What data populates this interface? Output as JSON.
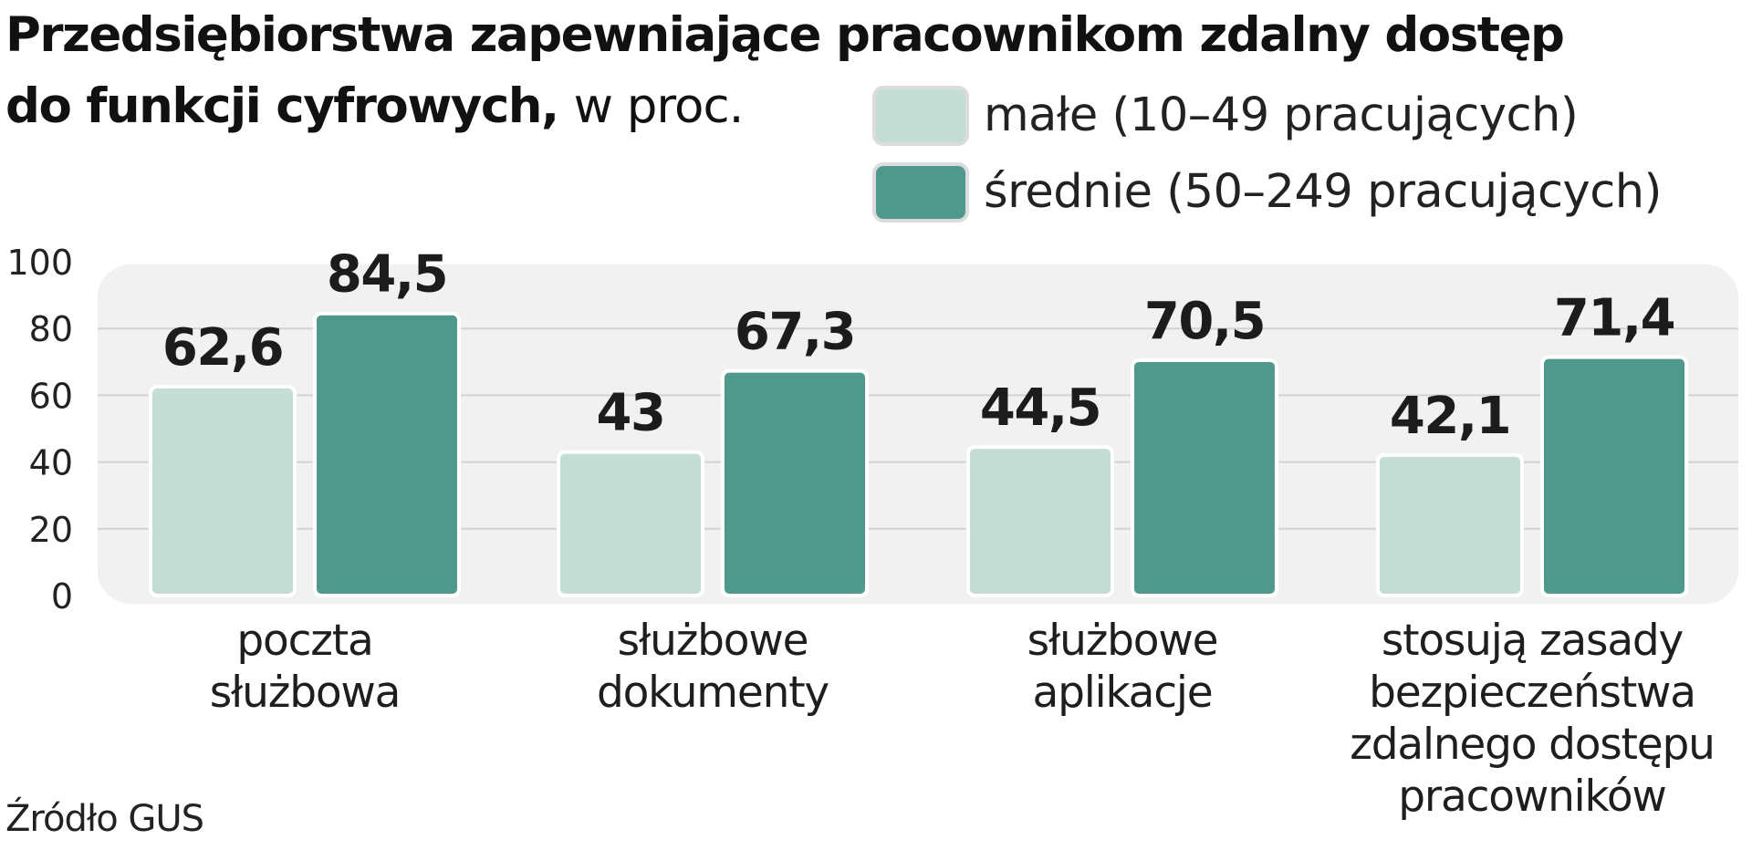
{
  "chart_data": {
    "type": "bar",
    "title_line1": "Przedsiębiorstwa zapewniające pracownikom zdalny dostęp",
    "title_line2": "do funkcji cyfrowych,",
    "unit": "w proc.",
    "categories": [
      [
        "poczta",
        "służbowa"
      ],
      [
        "służbowe",
        "dokumenty"
      ],
      [
        "służbowe",
        "aplikacje"
      ],
      [
        "stosują zasady",
        "bezpieczeństwa",
        "zdalnego dostępu",
        "pracowników"
      ]
    ],
    "series": [
      {
        "name": "małe (10–49 pracujących)",
        "color": "#c4ddd5",
        "values": [
          62.6,
          43,
          44.5,
          42.1
        ],
        "labels": [
          "62,6",
          "43",
          "44,5",
          "42,1"
        ]
      },
      {
        "name": "średnie (50–249 pracujących)",
        "color": "#4f998c",
        "values": [
          84.5,
          67.3,
          70.5,
          71.4
        ],
        "labels": [
          "84,5",
          "67,3",
          "70,5",
          "71,4"
        ]
      }
    ],
    "ylim": [
      0,
      100
    ],
    "yticks": [
      {
        "value": 0,
        "label": "0"
      },
      {
        "value": 20,
        "label": "20"
      },
      {
        "value": 40,
        "label": "40"
      },
      {
        "value": 60,
        "label": "60"
      },
      {
        "value": 80,
        "label": "80"
      },
      {
        "value": 100,
        "label": "100"
      }
    ],
    "grid": true,
    "legend_position": "top-right",
    "source": "Źródło GUS"
  }
}
